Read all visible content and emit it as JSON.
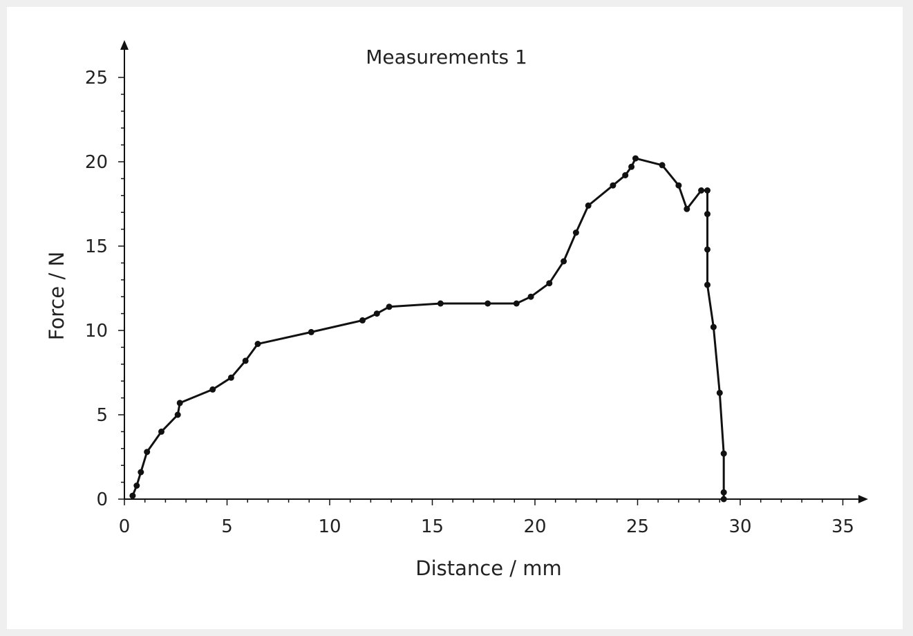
{
  "chart_data": {
    "type": "line",
    "title": "Measurements 1",
    "xlabel": "Distance / mm",
    "ylabel": "Force / N",
    "xlim": [
      0,
      35
    ],
    "ylim": [
      0,
      25
    ],
    "xticks": [
      "0",
      "5",
      "10",
      "15",
      "20",
      "25",
      "30",
      "35"
    ],
    "yticks": [
      "0",
      "5",
      "10",
      "15",
      "20",
      "25"
    ],
    "grid": false,
    "legend": "none",
    "line_color": "#111111",
    "series": [
      {
        "x": [
          0.4,
          0.6,
          0.8,
          1.1,
          1.8,
          2.6,
          2.7,
          4.3,
          5.2,
          5.9,
          6.5,
          9.1,
          11.6,
          12.3,
          12.9,
          15.4,
          17.7,
          19.1,
          19.8,
          20.7,
          21.4,
          22.0,
          22.6,
          23.8,
          24.4,
          24.7,
          24.9,
          26.2,
          27.0,
          27.4,
          28.1,
          28.4,
          28.4,
          28.4,
          28.4,
          28.7,
          29.0,
          29.2,
          29.2,
          29.2
        ],
        "y": [
          0.2,
          0.8,
          1.6,
          2.8,
          4.0,
          5.0,
          5.7,
          6.5,
          7.2,
          8.2,
          9.2,
          9.9,
          10.6,
          11.0,
          11.4,
          11.6,
          11.6,
          11.6,
          12.0,
          12.8,
          14.1,
          15.8,
          17.4,
          18.6,
          19.2,
          19.7,
          20.2,
          19.8,
          18.6,
          17.2,
          18.3,
          18.3,
          16.9,
          14.8,
          12.7,
          10.2,
          6.3,
          2.7,
          0.4,
          0.0
        ]
      }
    ]
  }
}
